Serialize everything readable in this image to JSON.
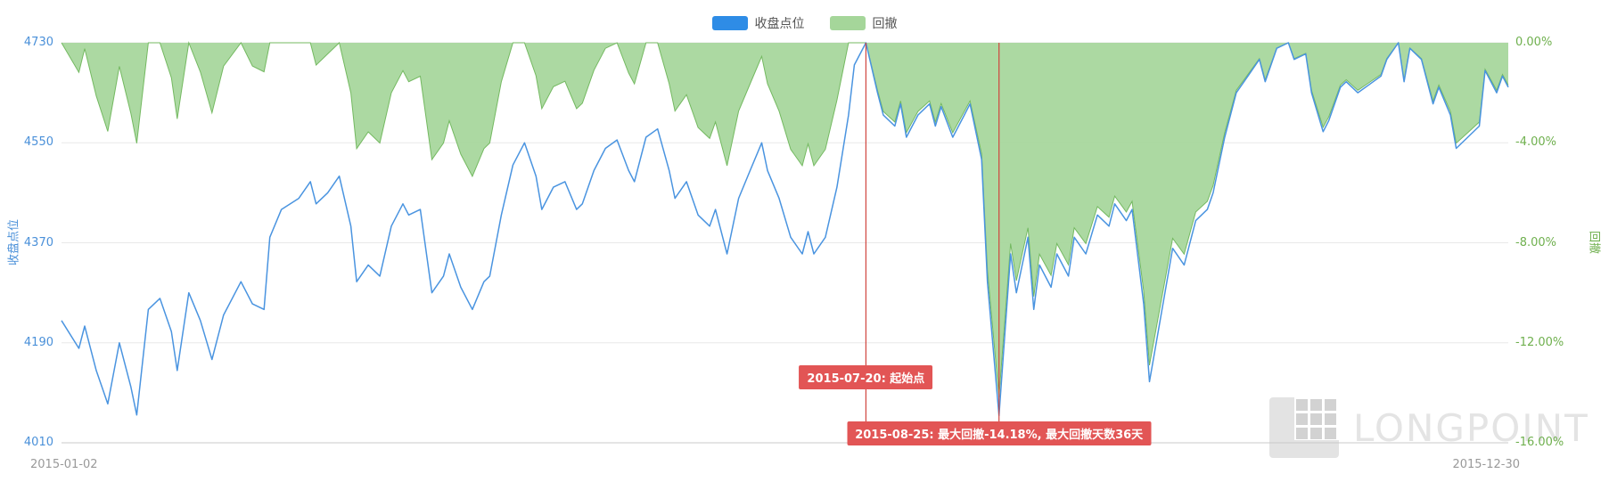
{
  "page": {
    "background": "#ffffff"
  },
  "colors": {
    "line": "#4a94e0",
    "area_fill": "#a5d69a",
    "area_stroke": "#74b961",
    "marker": "#d0453f",
    "annotation_bg": "#e25555",
    "left_axis_text": "#4a90d9",
    "right_axis_text": "#6fb04e",
    "grid": "#e8e8e8",
    "axis_line": "#c9c9c9",
    "x_label": "#999999",
    "legend_label": "#545454"
  },
  "watermark": {
    "text": "LONGPOINT"
  },
  "chart_data": {
    "type": "line+area",
    "title": "",
    "x_range": [
      "2015-01-02",
      "2015-12-30"
    ],
    "x_domain_days": 250,
    "left_axis": {
      "label": "收盘点位",
      "ticks": [
        "4730",
        "4550",
        "4370",
        "4190",
        "4010"
      ],
      "range": [
        4010,
        4730
      ]
    },
    "right_axis": {
      "label": "回撤",
      "ticks": [
        "0.00%",
        "-4.00%",
        "-8.00%",
        "-12.00%",
        "-16.00%"
      ],
      "range_pct": [
        -16,
        0
      ]
    },
    "grid": true,
    "legend_position": "top-center",
    "series": [
      {
        "name": "收盘点位",
        "type": "line",
        "axis": "left",
        "color": "#4a94e0",
        "points": [
          [
            0,
            4230
          ],
          [
            3,
            4180
          ],
          [
            4,
            4220
          ],
          [
            6,
            4140
          ],
          [
            8,
            4080
          ],
          [
            10,
            4190
          ],
          [
            12,
            4110
          ],
          [
            13,
            4060
          ],
          [
            15,
            4250
          ],
          [
            17,
            4270
          ],
          [
            19,
            4210
          ],
          [
            20,
            4140
          ],
          [
            22,
            4280
          ],
          [
            24,
            4230
          ],
          [
            26,
            4160
          ],
          [
            28,
            4240
          ],
          [
            31,
            4300
          ],
          [
            33,
            4260
          ],
          [
            35,
            4250
          ],
          [
            36,
            4380
          ],
          [
            38,
            4430
          ],
          [
            41,
            4450
          ],
          [
            43,
            4480
          ],
          [
            44,
            4440
          ],
          [
            46,
            4460
          ],
          [
            48,
            4490
          ],
          [
            50,
            4400
          ],
          [
            51,
            4300
          ],
          [
            53,
            4330
          ],
          [
            55,
            4310
          ],
          [
            57,
            4400
          ],
          [
            59,
            4440
          ],
          [
            60,
            4420
          ],
          [
            62,
            4430
          ],
          [
            64,
            4280
          ],
          [
            66,
            4310
          ],
          [
            67,
            4350
          ],
          [
            69,
            4290
          ],
          [
            71,
            4250
          ],
          [
            73,
            4300
          ],
          [
            74,
            4310
          ],
          [
            76,
            4420
          ],
          [
            78,
            4510
          ],
          [
            80,
            4550
          ],
          [
            82,
            4490
          ],
          [
            83,
            4430
          ],
          [
            85,
            4470
          ],
          [
            87,
            4480
          ],
          [
            89,
            4430
          ],
          [
            90,
            4440
          ],
          [
            92,
            4500
          ],
          [
            94,
            4540
          ],
          [
            96,
            4555
          ],
          [
            98,
            4500
          ],
          [
            99,
            4480
          ],
          [
            101,
            4560
          ],
          [
            103,
            4575
          ],
          [
            105,
            4500
          ],
          [
            106,
            4450
          ],
          [
            108,
            4480
          ],
          [
            110,
            4420
          ],
          [
            112,
            4400
          ],
          [
            113,
            4430
          ],
          [
            115,
            4350
          ],
          [
            117,
            4450
          ],
          [
            119,
            4500
          ],
          [
            121,
            4550
          ],
          [
            122,
            4500
          ],
          [
            124,
            4450
          ],
          [
            126,
            4380
          ],
          [
            128,
            4350
          ],
          [
            129,
            4390
          ],
          [
            130,
            4350
          ],
          [
            132,
            4380
          ],
          [
            134,
            4470
          ],
          [
            136,
            4600
          ],
          [
            137,
            4690
          ],
          [
            139,
            4730
          ],
          [
            141,
            4640
          ],
          [
            142,
            4600
          ],
          [
            144,
            4580
          ],
          [
            145,
            4620
          ],
          [
            146,
            4560
          ],
          [
            148,
            4600
          ],
          [
            150,
            4620
          ],
          [
            151,
            4580
          ],
          [
            152,
            4615
          ],
          [
            154,
            4560
          ],
          [
            156,
            4600
          ],
          [
            157,
            4620
          ],
          [
            159,
            4520
          ],
          [
            160,
            4300
          ],
          [
            162,
            4059
          ],
          [
            164,
            4350
          ],
          [
            165,
            4280
          ],
          [
            167,
            4380
          ],
          [
            168,
            4250
          ],
          [
            169,
            4330
          ],
          [
            171,
            4290
          ],
          [
            172,
            4350
          ],
          [
            174,
            4310
          ],
          [
            175,
            4380
          ],
          [
            177,
            4350
          ],
          [
            179,
            4420
          ],
          [
            181,
            4400
          ],
          [
            182,
            4440
          ],
          [
            184,
            4410
          ],
          [
            185,
            4430
          ],
          [
            187,
            4260
          ],
          [
            188,
            4120
          ],
          [
            189,
            4180
          ],
          [
            191,
            4300
          ],
          [
            192,
            4360
          ],
          [
            194,
            4330
          ],
          [
            196,
            4410
          ],
          [
            198,
            4430
          ],
          [
            199,
            4460
          ],
          [
            201,
            4560
          ],
          [
            203,
            4640
          ],
          [
            205,
            4670
          ],
          [
            207,
            4700
          ],
          [
            208,
            4660
          ],
          [
            210,
            4720
          ],
          [
            212,
            4730
          ],
          [
            213,
            4700
          ],
          [
            215,
            4710
          ],
          [
            216,
            4640
          ],
          [
            218,
            4570
          ],
          [
            219,
            4590
          ],
          [
            221,
            4650
          ],
          [
            222,
            4660
          ],
          [
            224,
            4640
          ],
          [
            226,
            4655
          ],
          [
            228,
            4670
          ],
          [
            229,
            4700
          ],
          [
            231,
            4730
          ],
          [
            232,
            4660
          ],
          [
            233,
            4720
          ],
          [
            235,
            4700
          ],
          [
            237,
            4620
          ],
          [
            238,
            4650
          ],
          [
            240,
            4600
          ],
          [
            241,
            4540
          ],
          [
            243,
            4560
          ],
          [
            245,
            4580
          ],
          [
            246,
            4680
          ],
          [
            248,
            4640
          ],
          [
            249,
            4670
          ],
          [
            250,
            4650
          ]
        ]
      },
      {
        "name": "回撤",
        "type": "area",
        "axis": "right",
        "color": "#a5d69a",
        "derivation": "drawdown_pct = close / running_max(close) - 1"
      }
    ],
    "annotations": [
      {
        "date": "2015-07-20",
        "day": 139,
        "label": "2015-07-20: 起始点",
        "meaning": "drawdown start point"
      },
      {
        "date": "2015-08-25",
        "day": 162,
        "label": "2015-08-25: 最大回撤-14.18%, 最大回撤天数36天",
        "max_drawdown_pct": -14.18,
        "max_drawdown_days": 36
      }
    ]
  }
}
